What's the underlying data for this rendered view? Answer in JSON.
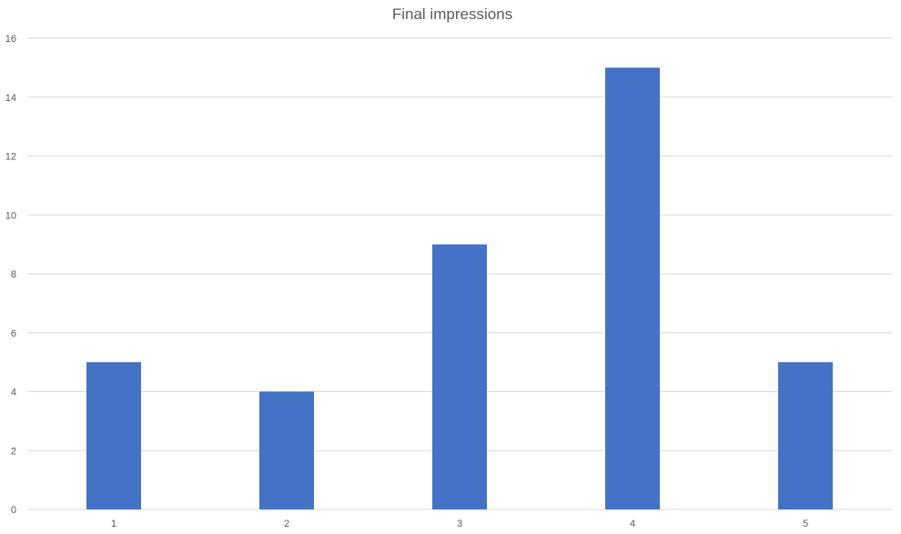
{
  "chart_data": {
    "type": "bar",
    "title": "Final impressions",
    "xlabel": "",
    "ylabel": "",
    "categories": [
      "1",
      "2",
      "3",
      "4",
      "5"
    ],
    "values": [
      5,
      4,
      9,
      15,
      5
    ],
    "ylim": [
      0,
      16
    ],
    "yticks": [
      0,
      2,
      4,
      6,
      8,
      10,
      12,
      14,
      16
    ],
    "grid": true,
    "legend": "none",
    "bar_color": "#4472c4"
  }
}
